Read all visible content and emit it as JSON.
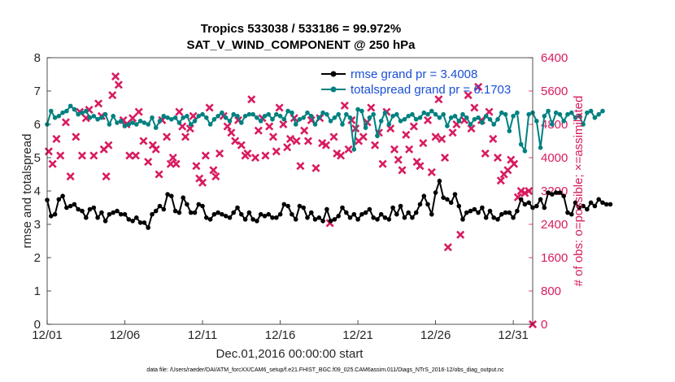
{
  "chart_data": {
    "type": "line",
    "title": "Tropics 533038 / 533186 = 99.972%",
    "subtitle": "SAT_V_WIND_COMPONENT @ 250 hPa",
    "xlabel": "Dec.01,2016 00:00:00 start",
    "ylabel": "rmse and totalspread",
    "y2label": "# of obs: o=possible; ×=assimilated",
    "footnote": "data file: /Users/raeder/DAI/ATM_forcXX/CAM6_setup/f.e21.FHIST_BGC.f09_025.CAM6assim.011/Diags_NTrS_2016-12/obs_diag_output.nc",
    "x_ticks": [
      "12/01",
      "12/06",
      "12/11",
      "12/16",
      "12/21",
      "12/26",
      "12/31"
    ],
    "x_tick_days": [
      0,
      5,
      10,
      15,
      20,
      25,
      30
    ],
    "xlim": [
      0,
      31.25
    ],
    "ylim": [
      0,
      8
    ],
    "y_ticks": [
      "0",
      "1",
      "2",
      "3",
      "4",
      "5",
      "6",
      "7",
      "8"
    ],
    "y2lim": [
      0,
      6400
    ],
    "y2_ticks": [
      "0",
      "800",
      "1600",
      "2400",
      "3200",
      "4000",
      "4800",
      "5600",
      "6400"
    ],
    "legend_position": "top-right",
    "colors": {
      "rmse": "#000000",
      "spread": "#008080",
      "obs": "#d81b60",
      "legend_text": "#1a4fd6"
    },
    "series": [
      {
        "name": "rmse grand pr = 3.4008",
        "axis": "left",
        "color": "#000000",
        "x_start": 0,
        "x_step": 0.25,
        "values": [
          3.73,
          3.25,
          3.3,
          3.75,
          3.85,
          3.5,
          3.55,
          3.6,
          3.45,
          3.4,
          3.2,
          3.45,
          3.5,
          3.2,
          3.35,
          3.1,
          3.3,
          3.35,
          3.4,
          3.3,
          3.3,
          3.15,
          3.1,
          3.2,
          3.05,
          3.05,
          2.9,
          3.3,
          3.4,
          3.55,
          3.45,
          3.9,
          3.85,
          3.4,
          3.35,
          3.8,
          3.6,
          3.35,
          3.35,
          3.6,
          3.55,
          3.2,
          3.15,
          3.3,
          3.35,
          3.3,
          3.25,
          3.2,
          3.35,
          3.5,
          3.3,
          3.15,
          3.35,
          3.15,
          3.1,
          3.3,
          3.25,
          3.3,
          3.2,
          3.2,
          3.3,
          3.6,
          3.55,
          3.3,
          3.15,
          3.55,
          3.5,
          3.2,
          3.35,
          3.15,
          3.2,
          3.1,
          3.45,
          3.1,
          3.15,
          3.25,
          3.5,
          3.35,
          3.2,
          3.3,
          3.15,
          3.3,
          3.35,
          3.45,
          3.2,
          3.15,
          3.3,
          3.2,
          3.15,
          3.5,
          3.3,
          3.55,
          3.2,
          3.35,
          3.2,
          3.35,
          3.6,
          3.85,
          3.6,
          3.3,
          3.95,
          4.3,
          3.8,
          3.75,
          3.65,
          3.9,
          3.55,
          3.15,
          3.35,
          3.4,
          3.45,
          3.35,
          3.5,
          3.2,
          3.4,
          3.2,
          3.15,
          3.3,
          3.35,
          3.35,
          3.2,
          3.4,
          3.75,
          3.6,
          3.65,
          3.5,
          3.55,
          3.75,
          3.5,
          3.95,
          3.9,
          3.95,
          3.95,
          3.85,
          3.35,
          3.3,
          3.65,
          3.5,
          3.55,
          3.45,
          3.65,
          3.55,
          3.75,
          3.65,
          3.6,
          3.6
        ]
      },
      {
        "name": "totalspread grand pr = 6.1703",
        "axis": "left",
        "color": "#008080",
        "x_start": 0,
        "x_step": 0.25,
        "values": [
          6.0,
          6.4,
          6.2,
          6.25,
          6.35,
          6.4,
          6.55,
          6.45,
          6.3,
          6.35,
          6.4,
          6.2,
          6.25,
          6.15,
          6.2,
          6.3,
          6.0,
          6.25,
          6.05,
          6.1,
          5.95,
          6.0,
          6.05,
          6.0,
          6.1,
          6.05,
          6.0,
          6.2,
          5.9,
          6.1,
          6.25,
          6.2,
          6.15,
          6.2,
          6.05,
          6.2,
          6.25,
          6.0,
          6.1,
          6.25,
          6.3,
          6.2,
          6.0,
          6.15,
          6.25,
          6.35,
          6.2,
          6.1,
          6.3,
          6.25,
          6.05,
          6.25,
          6.3,
          6.3,
          6.2,
          6.1,
          6.25,
          6.3,
          6.15,
          6.3,
          6.25,
          6.15,
          6.4,
          6.35,
          6.0,
          6.15,
          6.2,
          6.35,
          6.25,
          6.0,
          6.2,
          6.35,
          6.3,
          6.1,
          6.2,
          6.3,
          6.0,
          6.3,
          6.2,
          5.25,
          6.45,
          6.4,
          5.9,
          6.2,
          6.3,
          5.65,
          6.1,
          6.35,
          6.0,
          6.25,
          6.3,
          6.1,
          6.15,
          6.25,
          6.3,
          6.15,
          6.2,
          6.35,
          6.3,
          6.4,
          6.3,
          6.2,
          6.3,
          5.95,
          6.2,
          6.25,
          6.1,
          6.3,
          6.2,
          6.0,
          6.15,
          6.2,
          6.05,
          6.25,
          6.15,
          6.0,
          6.15,
          6.35,
          6.3,
          5.8,
          6.25,
          6.35,
          5.4,
          5.2,
          6.3,
          6.35,
          6.1,
          5.3,
          6.25,
          6.4,
          6.0,
          6.35,
          6.3,
          6.1,
          6.3,
          6.35,
          6.2,
          6.25,
          6.0,
          6.35,
          6.4,
          6.2,
          6.3,
          6.4
        ]
      },
      {
        "name": "obs assimilated",
        "axis": "right",
        "color": "#d81b60",
        "marker": "x",
        "points": [
          [
            0.1,
            4150
          ],
          [
            0.35,
            3850
          ],
          [
            0.6,
            4450
          ],
          [
            0.85,
            4050
          ],
          [
            1.2,
            4850
          ],
          [
            1.5,
            3550
          ],
          [
            1.85,
            4500
          ],
          [
            2.1,
            5100
          ],
          [
            2.25,
            4050
          ],
          [
            2.5,
            4950
          ],
          [
            2.7,
            5150
          ],
          [
            3.0,
            4050
          ],
          [
            3.3,
            5300
          ],
          [
            3.5,
            5000
          ],
          [
            3.65,
            4200
          ],
          [
            3.8,
            3550
          ],
          [
            3.95,
            4300
          ],
          [
            4.2,
            5500
          ],
          [
            4.4,
            5950
          ],
          [
            4.6,
            5750
          ],
          [
            4.9,
            4900
          ],
          [
            5.1,
            4800
          ],
          [
            5.3,
            4050
          ],
          [
            5.5,
            4950
          ],
          [
            5.7,
            4050
          ],
          [
            5.9,
            5100
          ],
          [
            6.2,
            4400
          ],
          [
            6.5,
            3900
          ],
          [
            6.8,
            4300
          ],
          [
            7.0,
            4200
          ],
          [
            7.2,
            3600
          ],
          [
            7.4,
            4900
          ],
          [
            7.7,
            4500
          ],
          [
            7.95,
            3850
          ],
          [
            8.1,
            4000
          ],
          [
            8.3,
            3850
          ],
          [
            8.5,
            5100
          ],
          [
            8.7,
            4750
          ],
          [
            8.9,
            4500
          ],
          [
            9.2,
            4700
          ],
          [
            9.4,
            5000
          ],
          [
            9.6,
            3800
          ],
          [
            9.8,
            3500
          ],
          [
            10.0,
            3400
          ],
          [
            10.2,
            4050
          ],
          [
            10.45,
            5200
          ],
          [
            10.7,
            3700
          ],
          [
            10.85,
            3550
          ],
          [
            11.1,
            4100
          ],
          [
            11.35,
            5000
          ],
          [
            11.6,
            4750
          ],
          [
            11.85,
            4600
          ],
          [
            12.1,
            4400
          ],
          [
            12.3,
            4900
          ],
          [
            12.5,
            4300
          ],
          [
            12.75,
            4050
          ],
          [
            12.9,
            4100
          ],
          [
            13.15,
            5400
          ],
          [
            13.4,
            4000
          ],
          [
            13.6,
            4650
          ],
          [
            13.85,
            4950
          ],
          [
            14.05,
            4050
          ],
          [
            14.3,
            4750
          ],
          [
            14.55,
            4500
          ],
          [
            14.75,
            4150
          ],
          [
            14.95,
            5200
          ],
          [
            15.2,
            4800
          ],
          [
            15.45,
            4250
          ],
          [
            15.65,
            4450
          ],
          [
            15.9,
            4950
          ],
          [
            16.05,
            4400
          ],
          [
            16.3,
            3800
          ],
          [
            16.55,
            4650
          ],
          [
            16.8,
            4400
          ],
          [
            17.0,
            4900
          ],
          [
            17.3,
            3750
          ],
          [
            17.55,
            4950
          ],
          [
            17.7,
            4350
          ],
          [
            17.95,
            4300
          ],
          [
            18.2,
            2430
          ],
          [
            18.45,
            4500
          ],
          [
            18.65,
            4100
          ],
          [
            18.9,
            4050
          ],
          [
            19.15,
            5250
          ],
          [
            19.4,
            4200
          ],
          [
            19.6,
            4900
          ],
          [
            19.85,
            4700
          ],
          [
            20.05,
            4400
          ],
          [
            20.35,
            4500
          ],
          [
            20.6,
            4850
          ],
          [
            20.85,
            5200
          ],
          [
            21.1,
            4300
          ],
          [
            21.35,
            4600
          ],
          [
            21.6,
            3850
          ],
          [
            21.85,
            5100
          ],
          [
            22.1,
            4700
          ],
          [
            22.35,
            4200
          ],
          [
            22.6,
            3950
          ],
          [
            22.85,
            3700
          ],
          [
            23.1,
            4550
          ],
          [
            23.3,
            4200
          ],
          [
            23.6,
            4750
          ],
          [
            23.8,
            3900
          ],
          [
            24.0,
            3800
          ],
          [
            24.2,
            4350
          ],
          [
            24.5,
            4900
          ],
          [
            24.75,
            3650
          ],
          [
            25.0,
            4500
          ],
          [
            25.2,
            5400
          ],
          [
            25.4,
            4450
          ],
          [
            25.6,
            4000
          ],
          [
            25.8,
            1850
          ],
          [
            26.1,
            4600
          ],
          [
            26.35,
            4800
          ],
          [
            26.6,
            2150
          ],
          [
            26.85,
            4900
          ],
          [
            27.1,
            5500
          ],
          [
            27.3,
            4700
          ],
          [
            27.5,
            5200
          ],
          [
            27.75,
            5700
          ],
          [
            27.95,
            4900
          ],
          [
            28.2,
            4100
          ],
          [
            28.45,
            5100
          ],
          [
            28.7,
            4450
          ],
          [
            29.0,
            4000
          ],
          [
            29.2,
            3450
          ],
          [
            29.4,
            3600
          ],
          [
            29.65,
            3700
          ],
          [
            29.85,
            3950
          ],
          [
            30.05,
            3850
          ],
          [
            30.3,
            3050
          ],
          [
            30.5,
            3200
          ],
          [
            30.75,
            3150
          ],
          [
            31.0,
            3200
          ],
          [
            31.25,
            0
          ]
        ]
      }
    ]
  }
}
